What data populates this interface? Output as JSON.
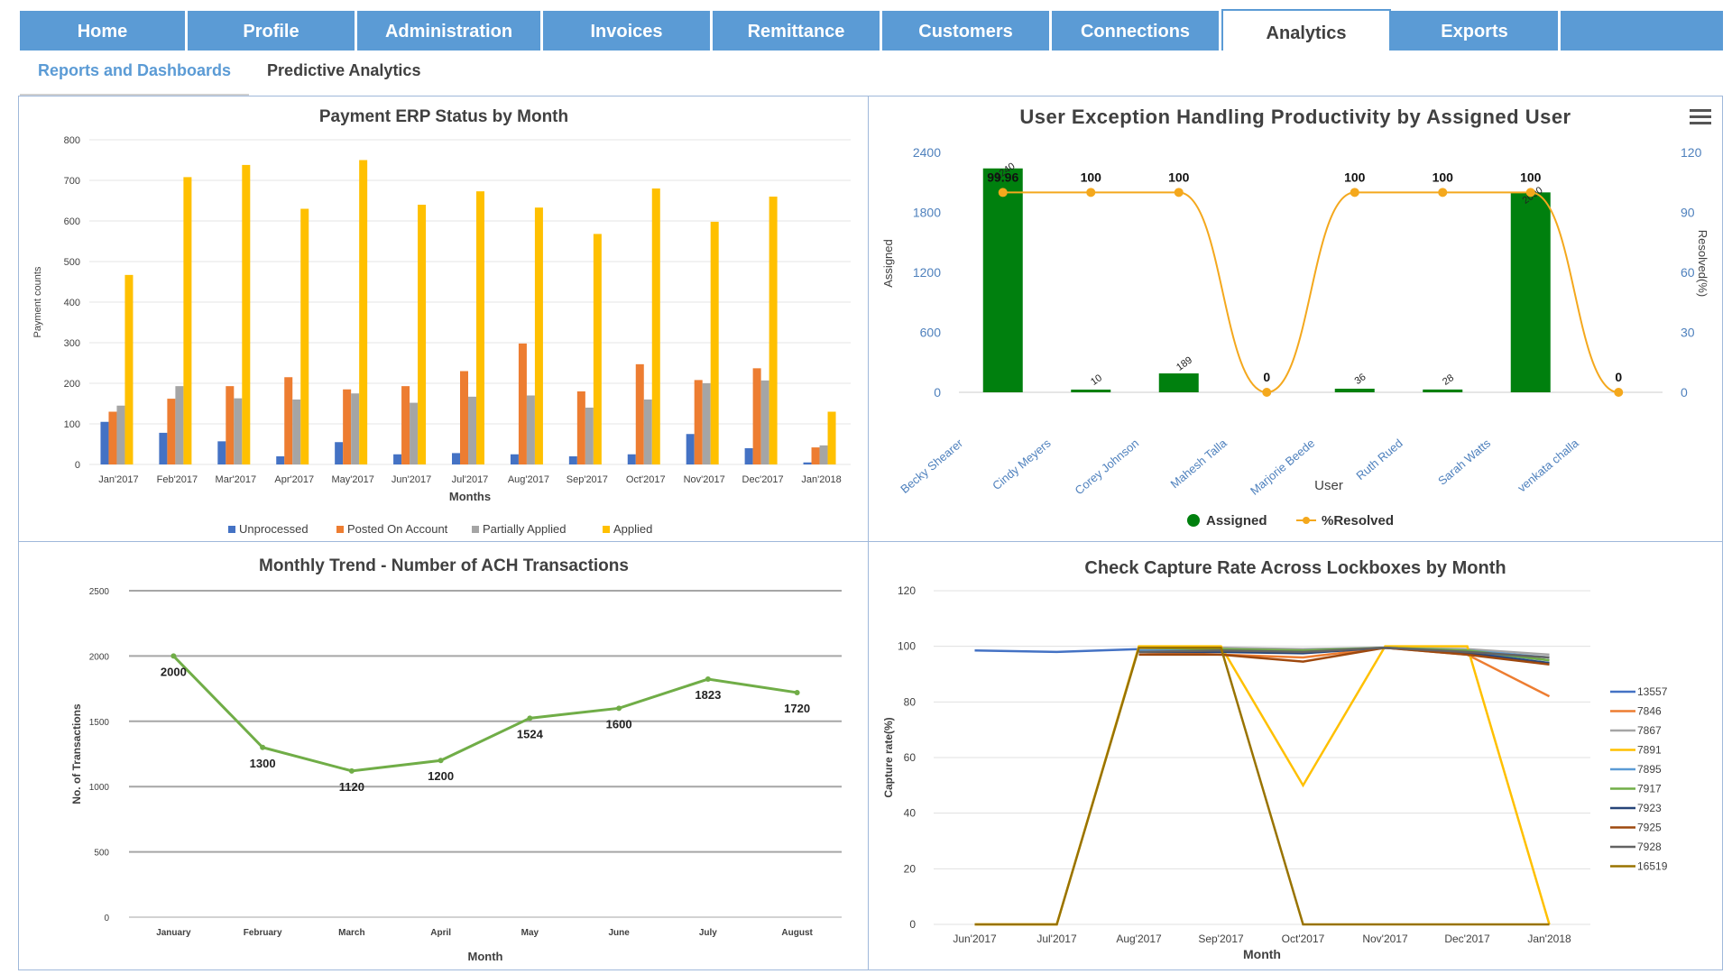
{
  "nav": {
    "tabs": [
      "Home",
      "Profile",
      "Administration",
      "Invoices",
      "Remittance",
      "Customers",
      "Connections",
      "Analytics",
      "Exports"
    ],
    "active_tab": "Analytics"
  },
  "subnav": {
    "tabs": [
      "Reports and Dashboards",
      "Predictive Analytics"
    ],
    "active": "Reports and Dashboards"
  },
  "colors": {
    "nav_bg": "#5b9bd5",
    "unprocessed": "#4472c4",
    "posted": "#ed7d31",
    "partial": "#a5a5a5",
    "applied": "#ffc000",
    "assigned": "#00800e",
    "resolved": "#f4a81d",
    "ach_line": "#70ad47"
  },
  "chart_data": [
    {
      "id": "erp",
      "type": "bar",
      "title": "Payment ERP Status by Month",
      "xlabel": "Months",
      "ylabel": "Payment counts",
      "ylim": [
        0,
        800
      ],
      "yticks": [
        0,
        100,
        200,
        300,
        400,
        500,
        600,
        700,
        800
      ],
      "legend_position": "bottom",
      "categories": [
        "Jan'2017",
        "Feb'2017",
        "Mar'2017",
        "Apr'2017",
        "May'2017",
        "Jun'2017",
        "Jul'2017",
        "Aug'2017",
        "Sep'2017",
        "Oct'2017",
        "Nov'2017",
        "Dec'2017",
        "Jan'2018"
      ],
      "series": [
        {
          "name": "Unprocessed",
          "color": "#4472c4",
          "values": [
            105,
            78,
            57,
            20,
            55,
            25,
            28,
            25,
            20,
            25,
            75,
            40,
            5
          ]
        },
        {
          "name": "Posted On Account",
          "color": "#ed7d31",
          "values": [
            130,
            162,
            193,
            215,
            185,
            193,
            230,
            298,
            180,
            247,
            208,
            237,
            42
          ]
        },
        {
          "name": "Partially Applied",
          "color": "#a5a5a5",
          "values": [
            145,
            193,
            163,
            160,
            175,
            152,
            167,
            170,
            140,
            160,
            200,
            207,
            47
          ]
        },
        {
          "name": "Applied",
          "color": "#ffc000",
          "values": [
            467,
            708,
            738,
            630,
            750,
            640,
            673,
            633,
            568,
            680,
            598,
            660,
            130
          ]
        }
      ]
    },
    {
      "id": "productivity",
      "type": "bar",
      "title": "User Exception Handling Productivity by Assigned User",
      "xlabel": "User",
      "ylabel": "Assigned",
      "y2label": "Resolved(%)",
      "ylim": [
        0,
        2400
      ],
      "yticks": [
        0,
        600,
        1200,
        1800,
        2400
      ],
      "y2lim": [
        0,
        120
      ],
      "y2ticks": [
        0,
        30,
        60,
        90,
        120
      ],
      "legend_position": "bottom",
      "categories": [
        "Becky Shearer",
        "Cindy Meyers",
        "Corey Johnson",
        "Mahesh Talla",
        "Marjorie Beede",
        "Ruth Rued",
        "Sarah Watts",
        "venkata challa"
      ],
      "series": [
        {
          "name": "Assigned",
          "color": "#00800e",
          "values": [
            2240,
            10,
            189,
            0,
            36,
            28,
            2000,
            0
          ],
          "labels": [
            "",
            "10",
            "189",
            "",
            "36",
            "28",
            "",
            ""
          ]
        },
        {
          "name": "%Resolved",
          "color": "#f4a81d",
          "values": [
            99.96,
            100,
            100,
            0,
            100,
            100,
            100,
            0
          ],
          "labels": [
            "99.96",
            "100",
            "100",
            "0",
            "100",
            "100",
            "100",
            "0"
          ]
        }
      ],
      "overlap_labels": [
        "2240",
        "",
        "",
        "",
        "",
        "",
        "2000",
        ""
      ]
    },
    {
      "id": "ach",
      "type": "line",
      "title": "Monthly  Trend - Number of ACH Transactions",
      "xlabel": "Month",
      "ylabel": "No. of Transactions",
      "ylim": [
        0,
        2500
      ],
      "yticks": [
        0,
        500,
        1000,
        1500,
        2000,
        2500
      ],
      "categories": [
        "January",
        "February",
        "March",
        "April",
        "May",
        "June",
        "July",
        "August"
      ],
      "series": [
        {
          "name": "",
          "color": "#70ad47",
          "values": [
            2000,
            1300,
            1120,
            1200,
            1524,
            1600,
            1823,
            1720
          ]
        }
      ]
    },
    {
      "id": "capture",
      "type": "line",
      "title": "Check Capture Rate Across Lockboxes by Month",
      "xlabel": "Month",
      "ylabel": "Capture rate(%)",
      "ylim": [
        0,
        120
      ],
      "yticks": [
        0,
        20,
        40,
        60,
        80,
        100,
        120
      ],
      "legend_position": "right",
      "categories": [
        "Jun'2017",
        "Jul'2017",
        "Aug'2017",
        "Sep'2017",
        "Oct'2017",
        "Nov'2017",
        "Dec'2017",
        "Jan'2018"
      ],
      "series": [
        {
          "name": "13557",
          "color": "#4472c4",
          "values": [
            98.5,
            98,
            99,
            98.5,
            98,
            99.5,
            98,
            95
          ]
        },
        {
          "name": "7846",
          "color": "#ed7d31",
          "values": [
            null,
            null,
            98,
            97,
            96,
            99.5,
            97,
            82
          ]
        },
        {
          "name": "7867",
          "color": "#a5a5a5",
          "values": [
            null,
            null,
            99,
            99.5,
            99,
            99.5,
            99,
            97
          ]
        },
        {
          "name": "7891",
          "color": "#ffc000",
          "values": [
            0,
            0,
            100,
            100,
            50,
            100,
            100,
            0
          ]
        },
        {
          "name": "7895",
          "color": "#5b9bd5",
          "values": [
            null,
            null,
            98.5,
            98.5,
            98.5,
            99.5,
            98.5,
            96
          ]
        },
        {
          "name": "7917",
          "color": "#70ad47",
          "values": [
            null,
            null,
            99.5,
            99,
            98.5,
            99.5,
            98.5,
            95
          ]
        },
        {
          "name": "7923",
          "color": "#264478",
          "values": [
            null,
            null,
            98,
            98,
            97.5,
            99.5,
            97.5,
            94
          ]
        },
        {
          "name": "7925",
          "color": "#9e480e",
          "values": [
            null,
            null,
            97,
            97,
            94.5,
            99.5,
            97,
            93.5
          ]
        },
        {
          "name": "7928",
          "color": "#636363",
          "values": [
            null,
            null,
            98,
            98.5,
            98,
            99.5,
            98,
            96
          ]
        },
        {
          "name": "16519",
          "color": "#997300",
          "values": [
            0,
            0,
            99.5,
            99.5,
            0,
            0,
            0,
            0
          ]
        }
      ]
    }
  ]
}
